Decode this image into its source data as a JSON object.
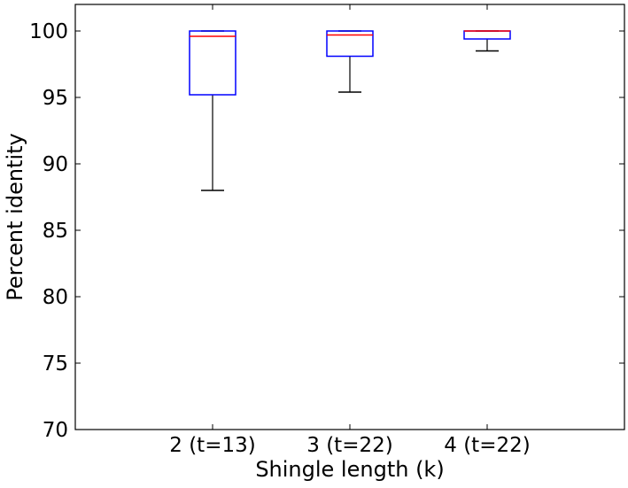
{
  "chart_data": {
    "type": "box",
    "xlabel": "Shingle length (k)",
    "ylabel": "Percent identity",
    "ylim": [
      70,
      102
    ],
    "yticks": [
      70,
      75,
      80,
      85,
      90,
      95,
      100
    ],
    "grid": false,
    "legend": "none",
    "categories": [
      "2 (t=13)",
      "3 (t=22)",
      "4 (t=22)"
    ],
    "boxes": [
      {
        "label": "2 (t=13)",
        "whisker_low": 88.0,
        "q1": 95.2,
        "median": 99.6,
        "q3": 100.0,
        "whisker_high": 100.0
      },
      {
        "label": "3 (t=22)",
        "whisker_low": 95.4,
        "q1": 98.1,
        "median": 99.7,
        "q3": 100.0,
        "whisker_high": 100.0
      },
      {
        "label": "4 (t=22)",
        "whisker_low": 98.5,
        "q1": 99.4,
        "median": 100.0,
        "q3": 100.0,
        "whisker_high": 100.0
      }
    ],
    "colors": {
      "box": "#0000ff",
      "median": "#ff0000",
      "whisker": "#000000",
      "axes": "#000000"
    }
  }
}
